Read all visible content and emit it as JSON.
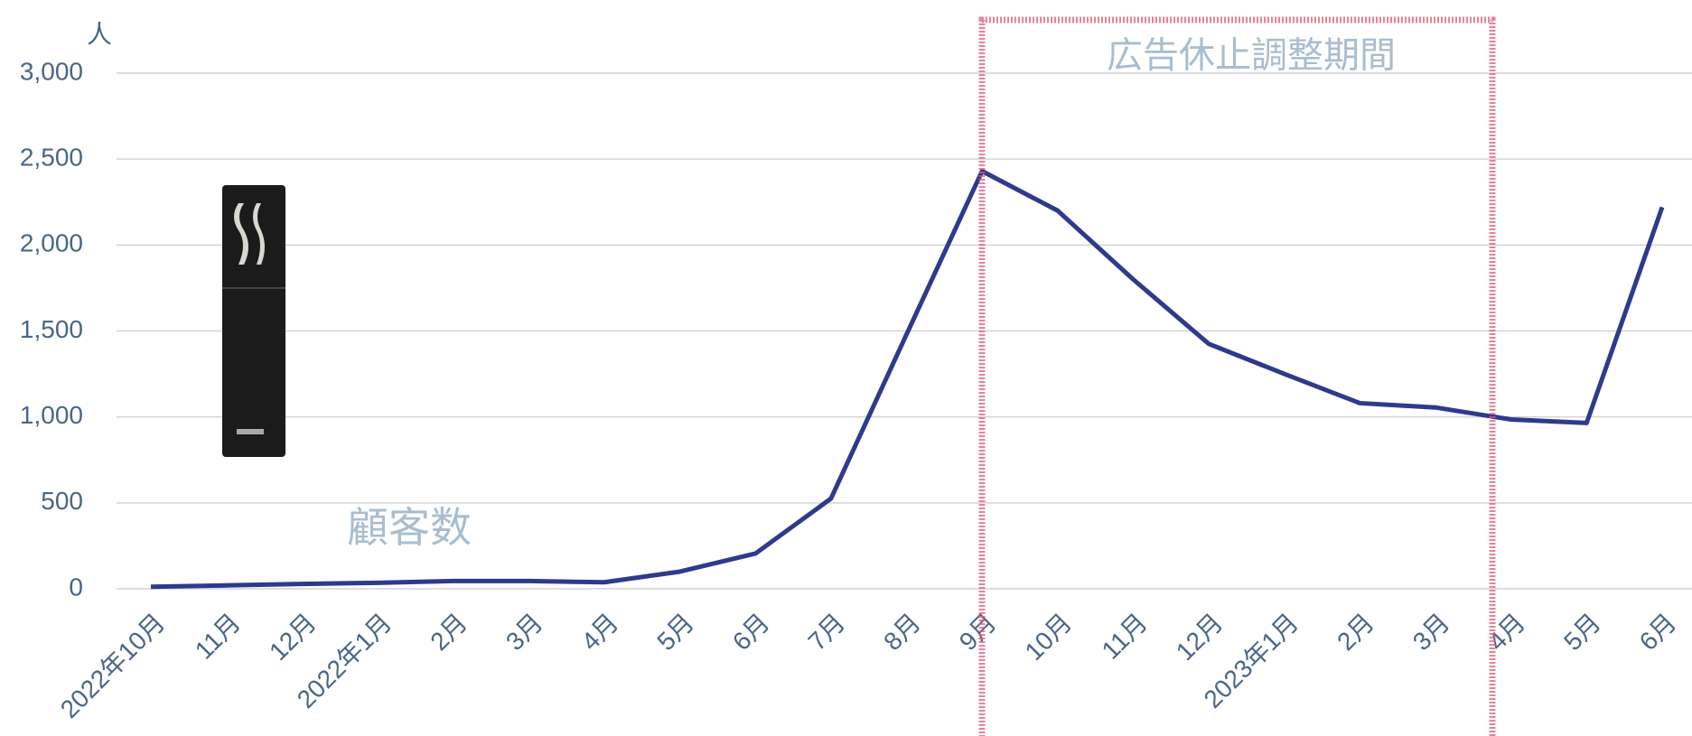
{
  "chart_data": {
    "type": "line",
    "unit_label": "人",
    "annotation": "広告休止調整期間",
    "categories": [
      "2022年10月",
      "11月",
      "12月",
      "2022年1月",
      "2月",
      "3月",
      "4月",
      "5月",
      "6月",
      "7月",
      "8月",
      "9月",
      "10月",
      "11月",
      "12月",
      "2023年1月",
      "2月",
      "3月",
      "4月",
      "5月",
      "6月"
    ],
    "series": [
      {
        "name": "顧客数",
        "color": "#2e3a8c",
        "values": [
          12,
          20,
          28,
          35,
          45,
          45,
          38,
          100,
          205,
          525,
          1480,
          2430,
          2200,
          1800,
          1425,
          1250,
          1080,
          1055,
          985,
          965,
          2220
        ]
      }
    ],
    "ylim": [
      0,
      3000
    ],
    "yticks": [
      0,
      500,
      {
        "value": 1000,
        "label": "1,000"
      },
      {
        "value": 1500,
        "label": "1,500"
      },
      {
        "value": 2000,
        "label": "2,000"
      },
      {
        "value": 2500,
        "label": "2,500"
      },
      {
        "value": 3000,
        "label": "3,000"
      }
    ],
    "grid": true
  }
}
